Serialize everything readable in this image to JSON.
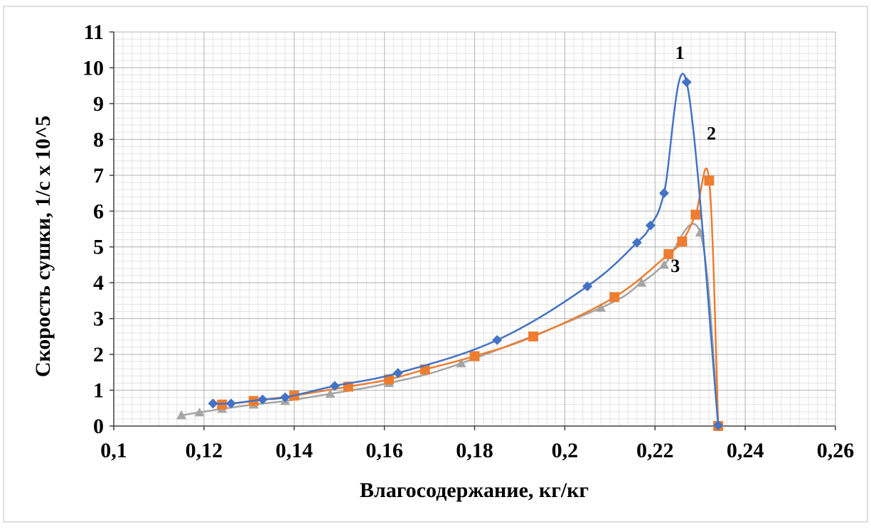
{
  "chart_data": {
    "type": "line",
    "title": "",
    "xlabel": "Влагосодержание, кг/кг",
    "ylabel": "Скорость сушки, 1/с x 10^5",
    "xlim": [
      0.1,
      0.26
    ],
    "ylim": [
      0,
      11
    ],
    "x_ticks": [
      0.1,
      0.12,
      0.14,
      0.16,
      0.18,
      0.2,
      0.22,
      0.24,
      0.26
    ],
    "x_tick_labels": [
      "0,1",
      "0,12",
      "0,14",
      "0,16",
      "0,18",
      "0,2",
      "0,22",
      "0,24",
      "0,26"
    ],
    "y_ticks": [
      0,
      1,
      2,
      3,
      4,
      5,
      6,
      7,
      8,
      9,
      10,
      11
    ],
    "y_tick_labels": [
      "0",
      "1",
      "2",
      "3",
      "4",
      "5",
      "6",
      "7",
      "8",
      "9",
      "10",
      "11"
    ],
    "grid": true,
    "minor_grid": true,
    "smooth": true,
    "series": [
      {
        "label": "1",
        "color": "#4472c4",
        "marker": "diamond",
        "points": [
          [
            0.122,
            0.63
          ],
          [
            0.126,
            0.63
          ],
          [
            0.133,
            0.74
          ],
          [
            0.138,
            0.8
          ],
          [
            0.149,
            1.12
          ],
          [
            0.163,
            1.48
          ],
          [
            0.185,
            2.4
          ],
          [
            0.205,
            3.9
          ],
          [
            0.216,
            5.12
          ],
          [
            0.219,
            5.6
          ],
          [
            0.222,
            6.5
          ],
          [
            0.227,
            9.6
          ],
          [
            0.234,
            0.02
          ]
        ]
      },
      {
        "label": "2",
        "color": "#ed7d31",
        "marker": "square",
        "points": [
          [
            0.124,
            0.6
          ],
          [
            0.131,
            0.7
          ],
          [
            0.14,
            0.85
          ],
          [
            0.152,
            1.1
          ],
          [
            0.161,
            1.3
          ],
          [
            0.169,
            1.58
          ],
          [
            0.18,
            1.95
          ],
          [
            0.193,
            2.5
          ],
          [
            0.211,
            3.6
          ],
          [
            0.223,
            4.8
          ],
          [
            0.226,
            5.15
          ],
          [
            0.229,
            5.9
          ],
          [
            0.232,
            6.85
          ],
          [
            0.234,
            0.0
          ]
        ]
      },
      {
        "label": "3",
        "color": "#a5a5a5",
        "marker": "triangle",
        "points": [
          [
            0.115,
            0.3
          ],
          [
            0.119,
            0.38
          ],
          [
            0.124,
            0.48
          ],
          [
            0.131,
            0.6
          ],
          [
            0.138,
            0.7
          ],
          [
            0.148,
            0.9
          ],
          [
            0.161,
            1.2
          ],
          [
            0.177,
            1.75
          ],
          [
            0.208,
            3.3
          ],
          [
            0.217,
            4.0
          ],
          [
            0.222,
            4.5
          ],
          [
            0.23,
            5.4
          ],
          [
            0.234,
            0.0
          ]
        ]
      }
    ],
    "annotations": [
      {
        "text": "1",
        "x": 0.2255,
        "y": 10.25
      },
      {
        "text": "2",
        "x": 0.2325,
        "y": 8.0
      },
      {
        "text": "3",
        "x": 0.2245,
        "y": 4.3
      }
    ]
  }
}
